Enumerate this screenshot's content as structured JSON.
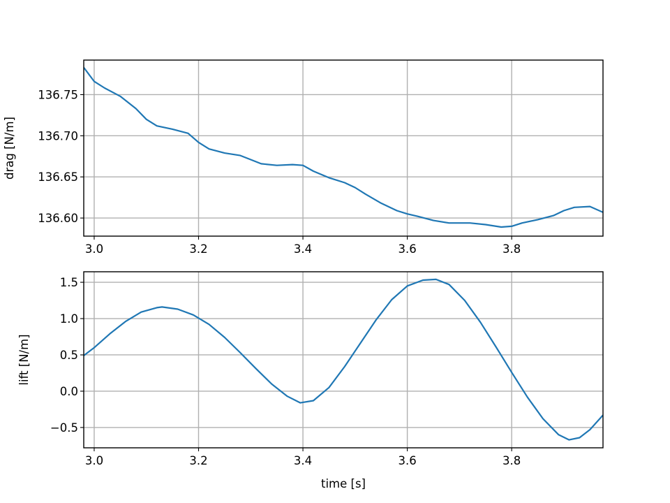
{
  "chart_data": [
    {
      "type": "line",
      "xlabel": "",
      "ylabel": "drag [N/m]",
      "xlim": [
        2.98,
        3.975
      ],
      "ylim": [
        136.578,
        136.792
      ],
      "xticks": [
        3.0,
        3.2,
        3.4,
        3.6,
        3.8
      ],
      "xtick_labels": [
        "3.0",
        "3.2",
        "3.4",
        "3.6",
        "3.8"
      ],
      "yticks": [
        136.6,
        136.65,
        136.7,
        136.75
      ],
      "ytick_labels": [
        "136.60",
        "136.65",
        "136.70",
        "136.75"
      ],
      "grid": true,
      "series": [
        {
          "color": "#1f77b4",
          "x": [
            2.98,
            3.0,
            3.02,
            3.05,
            3.08,
            3.1,
            3.12,
            3.15,
            3.18,
            3.2,
            3.22,
            3.25,
            3.28,
            3.3,
            3.32,
            3.35,
            3.38,
            3.4,
            3.42,
            3.45,
            3.48,
            3.5,
            3.52,
            3.55,
            3.58,
            3.6,
            3.62,
            3.65,
            3.68,
            3.7,
            3.72,
            3.75,
            3.78,
            3.8,
            3.82,
            3.85,
            3.88,
            3.9,
            3.92,
            3.95,
            3.975
          ],
          "y": [
            136.783,
            136.766,
            136.758,
            136.748,
            136.733,
            136.72,
            136.712,
            136.708,
            136.703,
            136.692,
            136.684,
            136.679,
            136.676,
            136.671,
            136.666,
            136.664,
            136.665,
            136.664,
            136.657,
            136.649,
            136.643,
            136.637,
            136.629,
            136.618,
            136.609,
            136.605,
            136.602,
            136.597,
            136.594,
            136.594,
            136.594,
            136.592,
            136.589,
            136.59,
            136.594,
            136.598,
            136.603,
            136.609,
            136.613,
            136.614,
            136.607
          ]
        }
      ]
    },
    {
      "type": "line",
      "xlabel": "time [s]",
      "ylabel": "lift [N/m]",
      "xlim": [
        2.98,
        3.975
      ],
      "ylim": [
        -0.78,
        1.645
      ],
      "xticks": [
        3.0,
        3.2,
        3.4,
        3.6,
        3.8
      ],
      "xtick_labels": [
        "3.0",
        "3.2",
        "3.4",
        "3.6",
        "3.8"
      ],
      "yticks": [
        -0.5,
        0.0,
        0.5,
        1.0,
        1.5
      ],
      "ytick_labels": [
        "−0.5",
        "0.0",
        "0.5",
        "1.0",
        "1.5"
      ],
      "grid": true,
      "series": [
        {
          "color": "#1f77b4",
          "x": [
            2.98,
            3.0,
            3.03,
            3.06,
            3.09,
            3.12,
            3.13,
            3.16,
            3.19,
            3.22,
            3.25,
            3.28,
            3.31,
            3.34,
            3.37,
            3.395,
            3.42,
            3.45,
            3.48,
            3.51,
            3.54,
            3.57,
            3.6,
            3.63,
            3.655,
            3.68,
            3.71,
            3.74,
            3.77,
            3.8,
            3.83,
            3.86,
            3.89,
            3.91,
            3.93,
            3.95,
            3.975
          ],
          "y": [
            0.49,
            0.6,
            0.79,
            0.96,
            1.09,
            1.15,
            1.16,
            1.13,
            1.05,
            0.92,
            0.74,
            0.53,
            0.31,
            0.1,
            -0.07,
            -0.16,
            -0.13,
            0.05,
            0.34,
            0.66,
            0.98,
            1.26,
            1.45,
            1.53,
            1.54,
            1.47,
            1.25,
            0.95,
            0.61,
            0.26,
            -0.08,
            -0.38,
            -0.6,
            -0.67,
            -0.64,
            -0.53,
            -0.33
          ]
        }
      ]
    }
  ]
}
